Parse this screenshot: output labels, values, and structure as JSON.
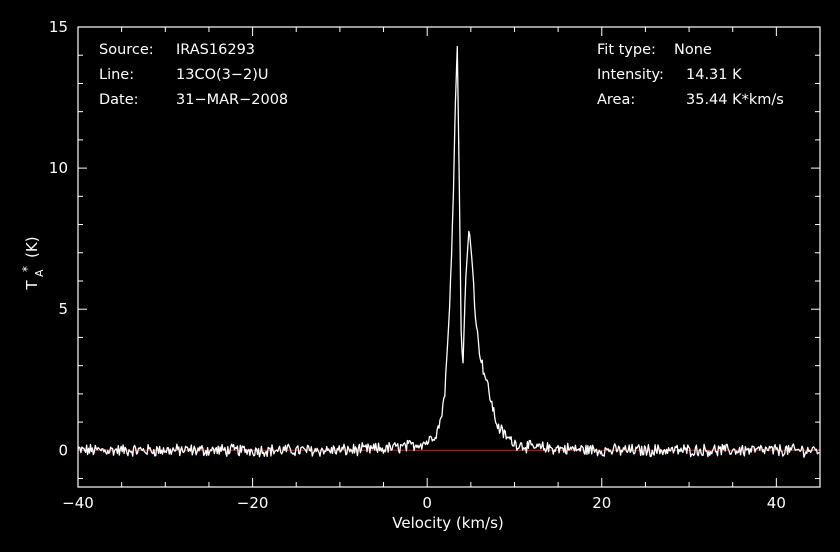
{
  "chart_data": {
    "type": "line",
    "xlabel": "Velocity (km/s)",
    "ylabel": "T",
    "ylabel_sub": "A",
    "ylabel_sup": "*",
    "ylabel_unit": "(K)",
    "xlim": [
      -40,
      45
    ],
    "ylim": [
      -1.3,
      15
    ],
    "xticks": [
      -40,
      -20,
      0,
      20,
      40
    ],
    "xtick_labels": [
      "−40",
      "−20",
      "0",
      "20",
      "40"
    ],
    "yticks": [
      0,
      5,
      10,
      15
    ],
    "ytick_labels": [
      "0",
      "5",
      "10",
      "15"
    ],
    "baseline": 0,
    "colors": {
      "background": "#000000",
      "spectrum": "#ffffff",
      "baseline": "#cc1111",
      "axes": "#ffffff"
    },
    "series": [
      {
        "x": [
          -40,
          -30,
          -20,
          -10,
          -5,
          -2,
          0,
          1,
          1.5,
          2,
          2.5,
          3.0,
          3.2,
          3.45,
          3.7,
          3.9,
          4.1,
          4.4,
          4.8,
          5.2,
          5.6,
          6.0,
          6.5,
          7,
          7.5,
          8,
          9,
          10,
          12,
          20,
          30,
          45
        ],
        "y": [
          0,
          0,
          0,
          0,
          0.05,
          0.15,
          0.3,
          0.6,
          1.0,
          2.0,
          4.5,
          9.0,
          12.0,
          14.31,
          9.0,
          4.0,
          3.0,
          6.0,
          7.9,
          6.5,
          4.5,
          3.5,
          2.8,
          2.2,
          1.5,
          0.9,
          0.5,
          0.25,
          0.1,
          0,
          0,
          0
        ]
      }
    ]
  },
  "info": {
    "source_label": "Source:",
    "source_value": "IRAS16293",
    "line_label": "Line:",
    "line_value": "13CO(3−2)U",
    "date_label": "Date:",
    "date_value": "31−MAR−2008",
    "fit_label": "Fit type:",
    "fit_value": "None",
    "intensity_label": "Intensity:",
    "intensity_value": "14.31 K",
    "area_label": "Area:",
    "area_value": "35.44 K*km/s"
  }
}
